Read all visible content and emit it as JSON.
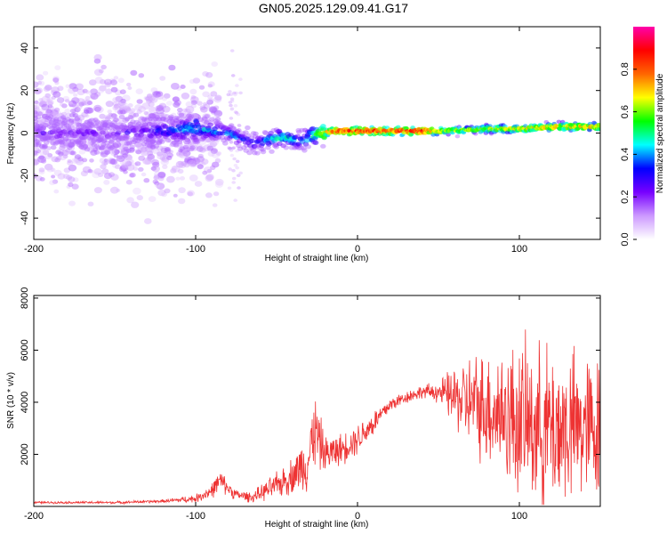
{
  "figure": {
    "title": "GN05.2025.129.09.41.G17"
  },
  "chart_data": [
    {
      "type": "heatmap",
      "title": "GN05.2025.129.09.41.G17",
      "xlabel": "Height of straight line (km)",
      "ylabel": "Frequency (Hz)",
      "xlim": [
        -200,
        150
      ],
      "ylim": [
        -50,
        50
      ],
      "xticks": [
        -200,
        -100,
        0,
        100
      ],
      "yticks": [
        -40,
        -20,
        0,
        20,
        40
      ],
      "colorbar": {
        "label": "Normalized spectral amplitude",
        "range": [
          0,
          1
        ],
        "ticks": [
          "0.0",
          "0.2",
          "0.4",
          "0.6",
          "0.8"
        ],
        "colormap": [
          "#ffffff",
          "#cc99ff",
          "#7700ff",
          "#0000ff",
          "#00ffff",
          "#00ff00",
          "#ffff00",
          "#ff6600",
          "#ff0000",
          "#ff00aa"
        ]
      },
      "ridge": {
        "x": [
          -200,
          -150,
          -120,
          -100,
          -80,
          -65,
          -55,
          -45,
          -35,
          -25,
          -15,
          0,
          20,
          40,
          55,
          80,
          100,
          125,
          150
        ],
        "y": [
          0,
          0,
          1,
          2,
          0,
          -5,
          -3,
          -2,
          -4,
          0,
          1,
          1,
          1,
          1,
          1,
          2,
          2,
          3,
          3
        ],
        "amplitude": [
          0.28,
          0.28,
          0.38,
          0.5,
          0.45,
          0.4,
          0.5,
          0.55,
          0.45,
          0.65,
          0.9,
          0.92,
          0.9,
          0.95,
          0.7,
          0.72,
          0.78,
          0.8,
          0.8
        ]
      }
    },
    {
      "type": "line",
      "xlabel": "Height of straight line (km)",
      "ylabel": "SNR (10 * v/v)",
      "xlim": [
        -200,
        150
      ],
      "ylim": [
        0,
        8100
      ],
      "xticks": [
        -200,
        -100,
        0,
        100
      ],
      "yticks": [
        2000,
        4000,
        6000,
        8000
      ],
      "color": "#ee3333",
      "envelope": {
        "x": [
          -200,
          -150,
          -120,
          -100,
          -90,
          -85,
          -80,
          -75,
          -65,
          -50,
          -40,
          -30,
          -27,
          -20,
          -10,
          0,
          10,
          20,
          30,
          40,
          50,
          60,
          70,
          80,
          90,
          100,
          110,
          120,
          130,
          140,
          150
        ],
        "mean": [
          150,
          150,
          200,
          300,
          600,
          1000,
          700,
          450,
          350,
          800,
          1200,
          1800,
          3000,
          2000,
          2200,
          2600,
          3200,
          3900,
          4200,
          4400,
          4400,
          4200,
          4000,
          3800,
          3600,
          3300,
          3100,
          3000,
          3000,
          3000,
          3000
        ],
        "spread": [
          40,
          50,
          60,
          150,
          300,
          400,
          300,
          200,
          200,
          500,
          700,
          1200,
          1500,
          700,
          600,
          600,
          500,
          300,
          250,
          250,
          400,
          1200,
          1800,
          2200,
          2600,
          3000,
          3000,
          3200,
          3000,
          2800,
          2800
        ]
      }
    }
  ]
}
